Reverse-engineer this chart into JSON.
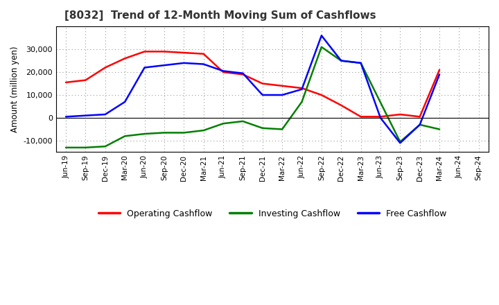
{
  "title": "[8032]  Trend of 12-Month Moving Sum of Cashflows",
  "ylabel": "Amount (million yen)",
  "background_color": "#ffffff",
  "plot_background": "#ffffff",
  "grid_color": "#999999",
  "x_labels": [
    "Jun-19",
    "Sep-19",
    "Dec-19",
    "Mar-20",
    "Jun-20",
    "Sep-20",
    "Dec-20",
    "Mar-21",
    "Jun-21",
    "Sep-21",
    "Dec-21",
    "Mar-22",
    "Jun-22",
    "Sep-22",
    "Dec-22",
    "Mar-23",
    "Jun-23",
    "Sep-23",
    "Dec-23",
    "Mar-24",
    "Jun-24",
    "Sep-24"
  ],
  "operating_x": [
    0,
    1,
    2,
    3,
    4,
    5,
    6,
    7,
    8,
    9,
    10,
    11,
    12,
    13,
    14,
    15,
    16,
    17,
    18,
    19
  ],
  "operating_y": [
    15500,
    16500,
    22000,
    26000,
    29000,
    29000,
    28500,
    28000,
    20000,
    19000,
    15000,
    14000,
    13000,
    10000,
    5500,
    500,
    500,
    1500,
    500,
    21000
  ],
  "investing_x": [
    0,
    1,
    2,
    3,
    4,
    5,
    6,
    7,
    8,
    9,
    10,
    11,
    12,
    13,
    14,
    15,
    17,
    18,
    19
  ],
  "investing_y": [
    -13000,
    -13000,
    -12500,
    -8000,
    -7000,
    -6500,
    -6500,
    -5500,
    -2500,
    -1500,
    -4500,
    -5000,
    7000,
    31000,
    25000,
    24000,
    -10500,
    -3000,
    -5000
  ],
  "free_x": [
    0,
    1,
    2,
    3,
    4,
    5,
    6,
    7,
    8,
    9,
    10,
    11,
    12,
    13,
    14,
    15,
    16,
    17,
    18,
    19
  ],
  "free_y": [
    500,
    1000,
    1500,
    7000,
    22000,
    23000,
    24000,
    23500,
    20500,
    19500,
    10000,
    10000,
    12500,
    36000,
    25000,
    24000,
    0,
    -11000,
    -3000,
    19000
  ],
  "ylim": [
    -15000,
    40000
  ],
  "yticks": [
    -10000,
    0,
    10000,
    20000,
    30000
  ],
  "line_colors": {
    "operating": "#ff0000",
    "investing": "#008000",
    "free": "#0000ff"
  },
  "legend_labels": [
    "Operating Cashflow",
    "Investing Cashflow",
    "Free Cashflow"
  ]
}
